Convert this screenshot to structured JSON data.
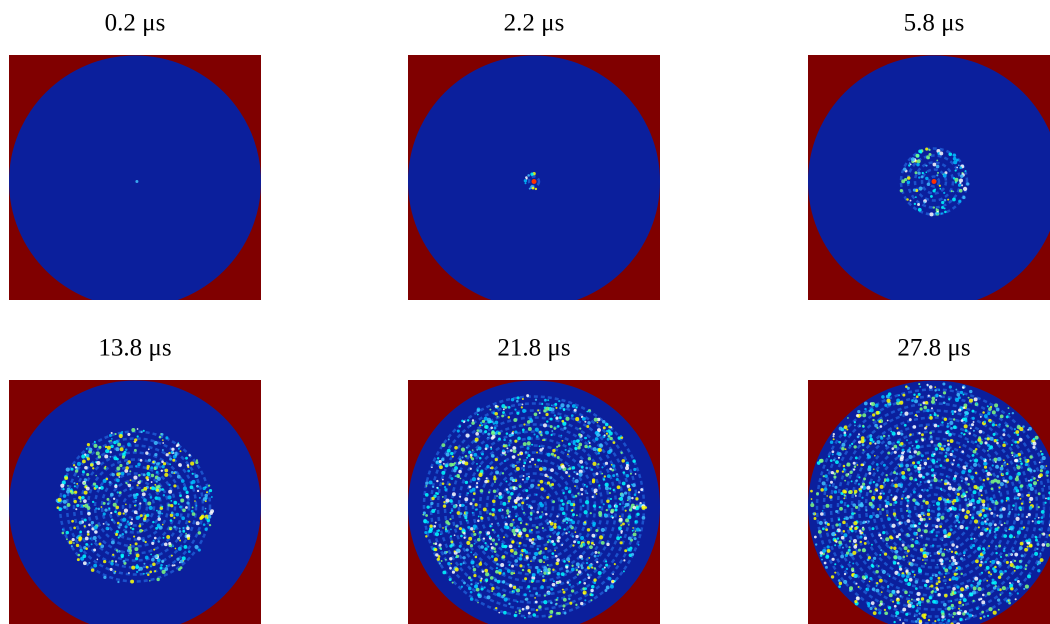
{
  "panels": [
    {
      "label": "0.2 μs"
    },
    {
      "label": "2.2 μs"
    },
    {
      "label": "5.8 μs"
    },
    {
      "label": "13.8 μs"
    },
    {
      "label": "21.8 μs"
    },
    {
      "label": "27.8 μs"
    }
  ]
}
